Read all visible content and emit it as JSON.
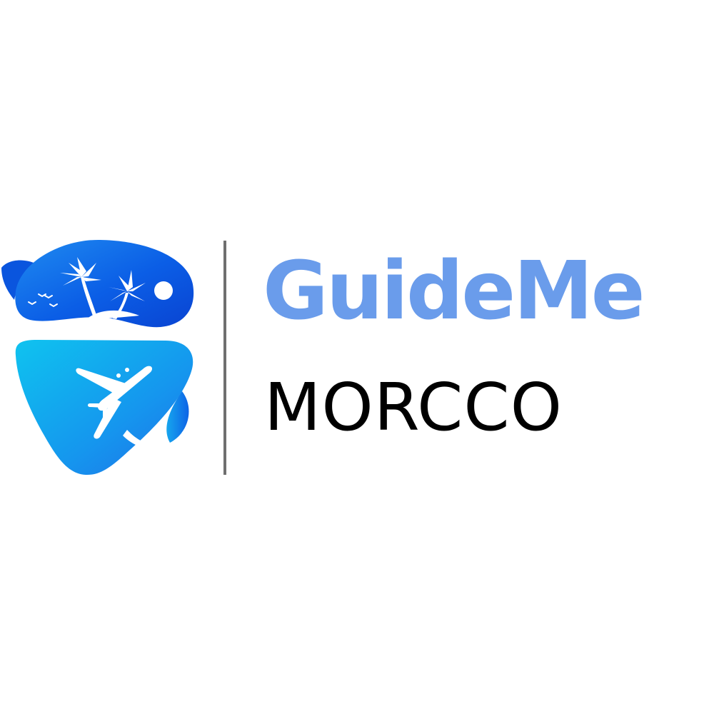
{
  "brand": {
    "name": "GuideMe",
    "subtitle": "MORCCO"
  },
  "logo": {
    "icon": "travel-pin-icon",
    "elements": [
      "palm-tree-icon",
      "sun-icon",
      "birds-icon",
      "airplane-icon"
    ]
  },
  "colors": {
    "brand_blue": "#6a9ceb",
    "deep_blue": "#0a4fd8",
    "cyan": "#10b8ea",
    "text_black": "#000000",
    "divider_gray": "#6f6f6f",
    "background": "#ffffff"
  }
}
